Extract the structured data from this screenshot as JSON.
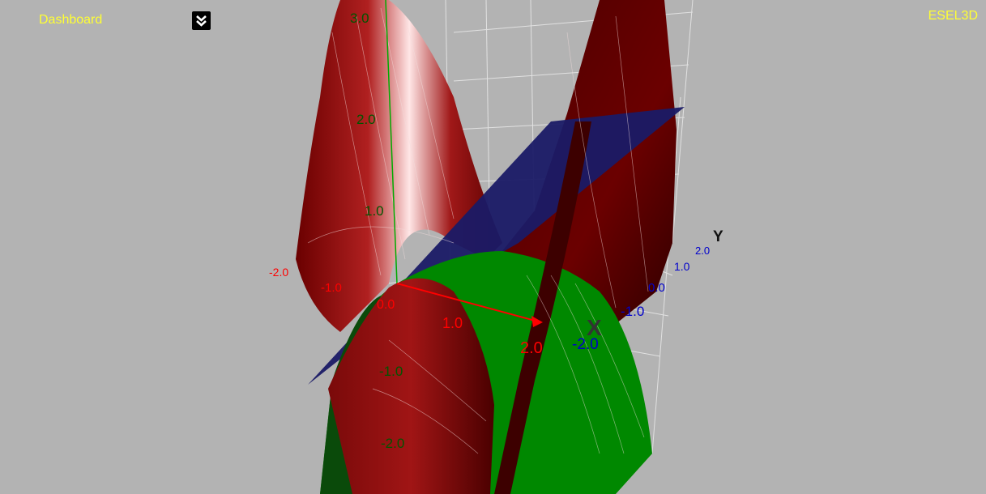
{
  "app": {
    "title": "Dashboard",
    "brand": "ESEL3D"
  },
  "controls": {
    "expand_icon": "double-chevron-down-icon"
  },
  "axes": {
    "x": {
      "name": "X",
      "color": "#ff0000",
      "ticks": [
        "-2.0",
        "-1.0",
        "0.0",
        "1.0",
        "2.0"
      ]
    },
    "y": {
      "name": "Y",
      "color": "#0000cc",
      "ticks": [
        "-2.0",
        "-1.0",
        "0.0",
        "1.0",
        "2.0"
      ]
    },
    "z": {
      "color": "#008800",
      "ticks": [
        "-2.0",
        "-1.0",
        "1.0",
        "2.0",
        "3.0"
      ]
    }
  },
  "surfaces": [
    {
      "color": "#8b0000"
    },
    {
      "color": "#008800"
    },
    {
      "color": "#1a1a66"
    }
  ]
}
